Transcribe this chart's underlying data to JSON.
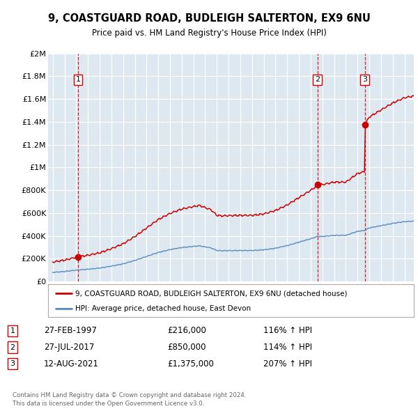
{
  "title1": "9, COASTGUARD ROAD, BUDLEIGH SALTERTON, EX9 6NU",
  "title2": "Price paid vs. HM Land Registry's House Price Index (HPI)",
  "legend_line1": "9, COASTGUARD ROAD, BUDLEIGH SALTERTON, EX9 6NU (detached house)",
  "legend_line2": "HPI: Average price, detached house, East Devon",
  "sale_label_dates": [
    "27-FEB-1997",
    "27-JUL-2017",
    "12-AUG-2021"
  ],
  "sale_label_prices": [
    "£216,000",
    "£850,000",
    "£1,375,000"
  ],
  "sale_label_hpi": [
    "116% ↑ HPI",
    "114% ↑ HPI",
    "207% ↑ HPI"
  ],
  "footer1": "Contains HM Land Registry data © Crown copyright and database right 2024.",
  "footer2": "This data is licensed under the Open Government Licence v3.0.",
  "red_color": "#cc0000",
  "blue_color": "#5588bb",
  "sale_years_f": [
    1997.162,
    2017.574,
    2021.616
  ],
  "sale_prices": [
    216000,
    850000,
    1375000
  ],
  "sale_labels": [
    "1",
    "2",
    "3"
  ],
  "ylim_max": 2000000,
  "xlim_min": 1994.6,
  "xlim_max": 2025.8,
  "yticks": [
    0,
    200000,
    400000,
    600000,
    800000,
    1000000,
    1200000,
    1400000,
    1600000,
    1800000,
    2000000
  ],
  "ytick_labels": [
    "£0",
    "£200K",
    "£400K",
    "£600K",
    "£800K",
    "£1M",
    "£1.2M",
    "£1.4M",
    "£1.6M",
    "£1.8M",
    "£2M"
  ]
}
